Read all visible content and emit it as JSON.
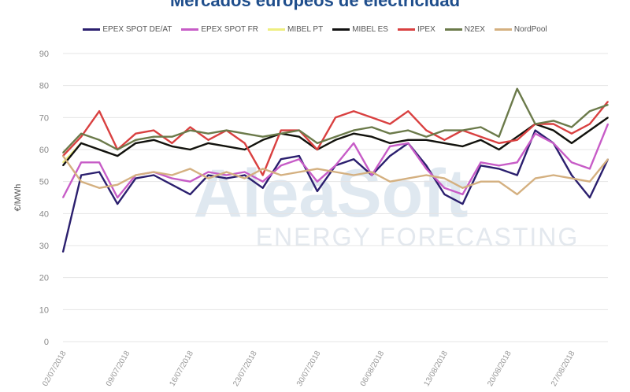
{
  "chart_data": {
    "type": "line",
    "title": "Mercados europeos de electricidad",
    "ylabel": "€/MWh",
    "xlabel": "",
    "ylim": [
      0,
      90
    ],
    "yticks": [
      0,
      10,
      20,
      30,
      40,
      50,
      60,
      70,
      80,
      90
    ],
    "grid": true,
    "legend_position": "top",
    "xtick_labels": [
      "02/07/2018",
      "09/07/2018",
      "16/07/2018",
      "23/07/2018",
      "30/07/2018",
      "06/08/2018",
      "13/08/2018",
      "20/08/2018",
      "27/08/2018"
    ],
    "x": [
      "02/07/2018",
      "04/07/2018",
      "06/07/2018",
      "08/07/2018",
      "10/07/2018",
      "12/07/2018",
      "14/07/2018",
      "16/07/2018",
      "18/07/2018",
      "20/07/2018",
      "22/07/2018",
      "24/07/2018",
      "26/07/2018",
      "28/07/2018",
      "30/07/2018",
      "01/08/2018",
      "03/08/2018",
      "05/08/2018",
      "07/08/2018",
      "09/08/2018",
      "11/08/2018",
      "13/08/2018",
      "15/08/2018",
      "17/08/2018",
      "19/08/2018",
      "21/08/2018",
      "23/08/2018",
      "25/08/2018",
      "27/08/2018",
      "29/08/2018",
      "31/08/2018"
    ],
    "series": [
      {
        "name": "EPEX SPOT DE/AT",
        "color": "#2b1f6e",
        "values": [
          28,
          52,
          53,
          43,
          51,
          52,
          49,
          46,
          52,
          51,
          52,
          48,
          57,
          58,
          47,
          55,
          57,
          52,
          58,
          62,
          55,
          46,
          43,
          55,
          54,
          52,
          66,
          62,
          52,
          45,
          57
        ]
      },
      {
        "name": "EPEX SPOT FR",
        "color": "#c75cc7",
        "values": [
          45,
          56,
          56,
          45,
          52,
          53,
          51,
          50,
          53,
          52,
          53,
          50,
          55,
          57,
          50,
          55,
          62,
          52,
          61,
          62,
          54,
          48,
          46,
          56,
          55,
          56,
          65,
          62,
          56,
          54,
          68
        ]
      },
      {
        "name": "MIBEL PT",
        "color": "#eeee80",
        "values": [
          56,
          62,
          60,
          58,
          62,
          63,
          61,
          60,
          62,
          61,
          60,
          63,
          65,
          64,
          60,
          63,
          65,
          64,
          62,
          63,
          63,
          62,
          61,
          63,
          60,
          64,
          68,
          66,
          62,
          66,
          70
        ]
      },
      {
        "name": "MIBEL ES",
        "color": "#111111",
        "values": [
          55,
          62,
          60,
          58,
          62,
          63,
          61,
          60,
          62,
          61,
          60,
          63,
          65,
          64,
          60,
          63,
          65,
          64,
          62,
          63,
          63,
          62,
          61,
          63,
          60,
          64,
          68,
          66,
          62,
          66,
          70
        ]
      },
      {
        "name": "IPEX",
        "color": "#d94040",
        "values": [
          58,
          64,
          72,
          60,
          65,
          66,
          62,
          67,
          63,
          66,
          62,
          52,
          66,
          66,
          60,
          70,
          72,
          70,
          68,
          72,
          66,
          63,
          66,
          64,
          62,
          63,
          68,
          68,
          65,
          68,
          75
        ]
      },
      {
        "name": "N2EX",
        "color": "#6b7a4a",
        "values": [
          59,
          65,
          63,
          60,
          63,
          64,
          64,
          66,
          65,
          66,
          65,
          64,
          65,
          66,
          62,
          64,
          66,
          67,
          65,
          66,
          64,
          66,
          66,
          67,
          64,
          79,
          68,
          69,
          67,
          72,
          74
        ]
      },
      {
        "name": "NordPool",
        "color": "#d4b080",
        "values": [
          58,
          50,
          48,
          49,
          52,
          53,
          52,
          54,
          51,
          53,
          51,
          54,
          52,
          53,
          54,
          53,
          52,
          53,
          50,
          51,
          52,
          51,
          48,
          50,
          50,
          46,
          51,
          52,
          51,
          50,
          57
        ]
      }
    ]
  },
  "watermark": {
    "brand": "AleaSoft",
    "tagline": "ENERGY FORECASTING"
  }
}
